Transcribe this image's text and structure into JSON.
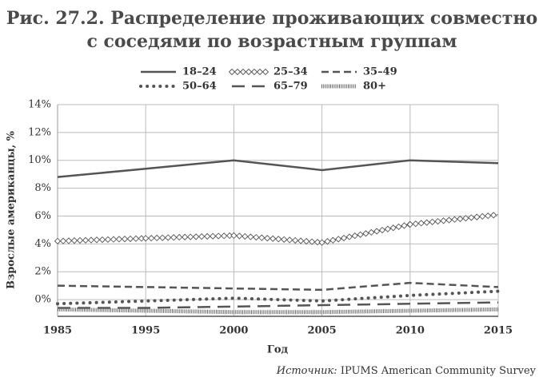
{
  "chart_data": {
    "type": "line",
    "title": [
      "Рис. 27.2. Распределение проживающих совместно",
      "с соседями по возрастным группам"
    ],
    "categories": [
      "1985",
      "1995",
      "2000",
      "2005",
      "2010",
      "2015"
    ],
    "series": [
      {
        "name": "18–24",
        "color": "#555555",
        "style": "solid",
        "values": [
          8.8,
          9.4,
          10.0,
          9.3,
          10.0,
          9.8
        ]
      },
      {
        "name": "25–34",
        "color": "#555555",
        "style": "diamond",
        "values": [
          4.2,
          4.4,
          4.6,
          4.1,
          5.4,
          6.1
        ]
      },
      {
        "name": "35–49",
        "color": "#555555",
        "style": "dash",
        "values": [
          1.0,
          0.9,
          0.8,
          0.7,
          1.2,
          0.9
        ]
      },
      {
        "name": "50–64",
        "color": "#555555",
        "style": "dot",
        "values": [
          -0.3,
          -0.1,
          0.1,
          -0.1,
          0.3,
          0.6
        ]
      },
      {
        "name": "65–79",
        "color": "#555555",
        "style": "longdash",
        "values": [
          -0.6,
          -0.6,
          -0.5,
          -0.4,
          -0.3,
          -0.2
        ]
      },
      {
        "name": "80+",
        "color": "#666666",
        "style": "hatch",
        "values": [
          -0.7,
          -0.8,
          -0.9,
          -0.9,
          -0.8,
          -0.7
        ]
      }
    ],
    "ylim": [
      -1.2,
      14
    ],
    "yticks": [
      {
        "value": 0,
        "label": "0%"
      },
      {
        "value": 2,
        "label": "2%"
      },
      {
        "value": 4,
        "label": "4%"
      },
      {
        "value": 6,
        "label": "6%"
      },
      {
        "value": 8,
        "label": "8%"
      },
      {
        "value": 10,
        "label": "10%"
      },
      {
        "value": 12,
        "label": "12%"
      },
      {
        "value": 14,
        "label": "14%"
      }
    ],
    "grid": true,
    "y_label": "Взрослые американцы, %",
    "x_label": "Год",
    "source_prefix": "Источник:",
    "source": "IPUMS American Community Survey"
  }
}
